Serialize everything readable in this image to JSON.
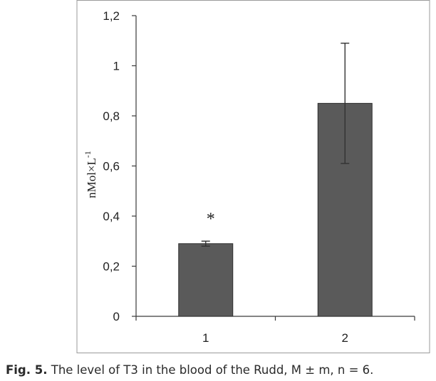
{
  "chart_data": {
    "type": "bar",
    "categories": [
      "1",
      "2"
    ],
    "values": [
      0.29,
      0.85
    ],
    "errors": [
      0.01,
      0.24
    ],
    "ylabel": "nMol×L-1",
    "ylim": [
      0,
      1.2
    ],
    "yticks": [
      "0",
      "0,2",
      "0,4",
      "0,6",
      "0,8",
      "1",
      "1,2"
    ],
    "annotations": [
      {
        "category": "1",
        "text": "*"
      }
    ],
    "grid": false,
    "legend": false,
    "bar_color": "#5a5a5a"
  },
  "caption": {
    "label": "Fig. 5.",
    "text": " The level of T3 in the blood of the Rudd, M ± m, n = 6."
  }
}
